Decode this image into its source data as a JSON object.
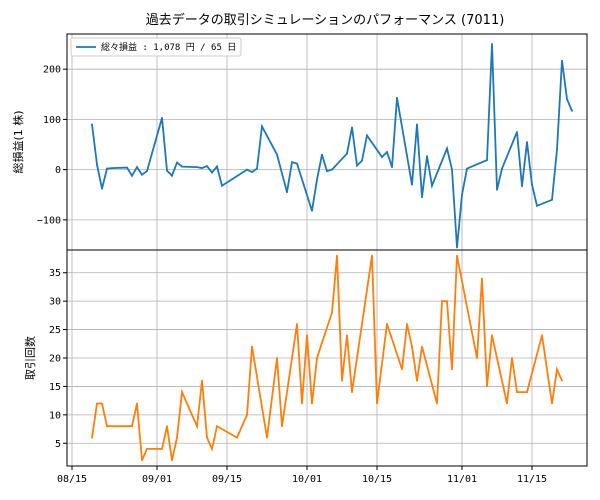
{
  "chart_data": {
    "title": "過去データの取引シミュレーションのパフォーマンス (7011)",
    "x_ticks": [
      "08/15",
      "09/01",
      "09/15",
      "10/01",
      "10/15",
      "11/01",
      "11/15"
    ],
    "x_tick_dates": [
      "2024-08-15",
      "2024-09-01",
      "2024-09-15",
      "2024-10-01",
      "2024-10-15",
      "2024-11-01",
      "2024-11-15"
    ],
    "xlim": [
      "2024-08-14",
      "2024-11-26"
    ],
    "grid": true,
    "subplots": [
      {
        "type": "line",
        "ylabel": "総損益(1 株)",
        "ylim": [
          -160,
          270
        ],
        "y_ticks": [
          -100,
          0,
          100,
          200
        ],
        "color": "#1f77b4",
        "legend": {
          "label": "総々損益 : 1,078 円 / 65 日",
          "placement": "top-left"
        },
        "points": [
          [
            "2024-08-19",
            90
          ],
          [
            "2024-08-20",
            10
          ],
          [
            "2024-08-21",
            -38
          ],
          [
            "2024-08-22",
            2
          ],
          [
            "2024-08-23",
            3
          ],
          [
            "2024-08-26",
            4
          ],
          [
            "2024-08-27",
            -12
          ],
          [
            "2024-08-28",
            5
          ],
          [
            "2024-08-29",
            -10
          ],
          [
            "2024-08-30",
            -3
          ],
          [
            "2024-09-02",
            103
          ],
          [
            "2024-09-03",
            -2
          ],
          [
            "2024-09-04",
            -12
          ],
          [
            "2024-09-05",
            14
          ],
          [
            "2024-09-06",
            6
          ],
          [
            "2024-09-09",
            5
          ],
          [
            "2024-09-10",
            3
          ],
          [
            "2024-09-11",
            7
          ],
          [
            "2024-09-12",
            -6
          ],
          [
            "2024-09-13",
            6
          ],
          [
            "2024-09-14",
            -32
          ],
          [
            "2024-09-19",
            0
          ],
          [
            "2024-09-20",
            -5
          ],
          [
            "2024-09-21",
            2
          ],
          [
            "2024-09-22",
            86
          ],
          [
            "2024-09-25",
            30
          ],
          [
            "2024-09-27",
            -45
          ],
          [
            "2024-09-28",
            15
          ],
          [
            "2024-09-29",
            12
          ],
          [
            "2024-10-02",
            -82
          ],
          [
            "2024-10-03",
            -20
          ],
          [
            "2024-10-04",
            30
          ],
          [
            "2024-10-05",
            -3
          ],
          [
            "2024-10-06",
            0
          ],
          [
            "2024-10-09",
            32
          ],
          [
            "2024-10-10",
            84
          ],
          [
            "2024-10-11",
            8
          ],
          [
            "2024-10-12",
            18
          ],
          [
            "2024-10-13",
            68
          ],
          [
            "2024-10-16",
            25
          ],
          [
            "2024-10-17",
            35
          ],
          [
            "2024-10-18",
            5
          ],
          [
            "2024-10-19",
            143
          ],
          [
            "2024-10-22",
            -30
          ],
          [
            "2024-10-23",
            90
          ],
          [
            "2024-10-24",
            -55
          ],
          [
            "2024-10-25",
            27
          ],
          [
            "2024-10-26",
            -32
          ],
          [
            "2024-10-29",
            42
          ],
          [
            "2024-10-30",
            0
          ],
          [
            "2024-10-31",
            -155
          ],
          [
            "2024-11-01",
            -50
          ],
          [
            "2024-11-02",
            2
          ],
          [
            "2024-11-06",
            19
          ],
          [
            "2024-11-07",
            250
          ],
          [
            "2024-11-08",
            -40
          ],
          [
            "2024-11-09",
            2
          ],
          [
            "2024-11-12",
            75
          ],
          [
            "2024-11-13",
            -33
          ],
          [
            "2024-11-14",
            55
          ],
          [
            "2024-11-15",
            -30
          ],
          [
            "2024-11-16",
            -72
          ],
          [
            "2024-11-19",
            -60
          ],
          [
            "2024-11-20",
            40
          ],
          [
            "2024-11-21",
            217
          ],
          [
            "2024-11-22",
            140
          ],
          [
            "2024-11-23",
            117
          ]
        ]
      },
      {
        "type": "line",
        "ylabel": "取引回数",
        "ylim": [
          1,
          39
        ],
        "y_ticks": [
          5,
          10,
          15,
          20,
          25,
          30,
          35
        ],
        "color": "#ff7f0e",
        "points": [
          [
            "2024-08-19",
            6
          ],
          [
            "2024-08-20",
            12
          ],
          [
            "2024-08-21",
            12
          ],
          [
            "2024-08-22",
            8
          ],
          [
            "2024-08-26",
            8
          ],
          [
            "2024-08-27",
            8
          ],
          [
            "2024-08-28",
            12
          ],
          [
            "2024-08-29",
            2
          ],
          [
            "2024-08-30",
            4
          ],
          [
            "2024-09-02",
            4
          ],
          [
            "2024-09-03",
            8
          ],
          [
            "2024-09-04",
            2
          ],
          [
            "2024-09-05",
            6
          ],
          [
            "2024-09-06",
            14
          ],
          [
            "2024-09-09",
            8
          ],
          [
            "2024-09-10",
            16
          ],
          [
            "2024-09-11",
            6
          ],
          [
            "2024-09-12",
            4
          ],
          [
            "2024-09-13",
            8
          ],
          [
            "2024-09-17",
            6
          ],
          [
            "2024-09-19",
            10
          ],
          [
            "2024-09-20",
            22
          ],
          [
            "2024-09-23",
            6
          ],
          [
            "2024-09-25",
            20
          ],
          [
            "2024-09-26",
            8
          ],
          [
            "2024-09-29",
            26
          ],
          [
            "2024-09-30",
            12
          ],
          [
            "2024-10-01",
            24
          ],
          [
            "2024-10-02",
            12
          ],
          [
            "2024-10-03",
            20
          ],
          [
            "2024-10-06",
            28
          ],
          [
            "2024-10-07",
            38
          ],
          [
            "2024-10-08",
            16
          ],
          [
            "2024-10-09",
            24
          ],
          [
            "2024-10-10",
            14
          ],
          [
            "2024-10-13",
            32
          ],
          [
            "2024-10-14",
            38
          ],
          [
            "2024-10-15",
            12
          ],
          [
            "2024-10-17",
            26
          ],
          [
            "2024-10-20",
            18
          ],
          [
            "2024-10-21",
            26
          ],
          [
            "2024-10-22",
            22
          ],
          [
            "2024-10-23",
            16
          ],
          [
            "2024-10-24",
            22
          ],
          [
            "2024-10-27",
            12
          ],
          [
            "2024-10-28",
            30
          ],
          [
            "2024-10-29",
            30
          ],
          [
            "2024-10-30",
            18
          ],
          [
            "2024-10-31",
            38
          ],
          [
            "2024-11-04",
            20
          ],
          [
            "2024-11-05",
            34
          ],
          [
            "2024-11-06",
            15
          ],
          [
            "2024-11-07",
            24
          ],
          [
            "2024-11-10",
            12
          ],
          [
            "2024-11-11",
            20
          ],
          [
            "2024-11-12",
            14
          ],
          [
            "2024-11-14",
            14
          ],
          [
            "2024-11-17",
            24
          ],
          [
            "2024-11-19",
            12
          ],
          [
            "2024-11-20",
            18
          ],
          [
            "2024-11-21",
            16
          ]
        ]
      }
    ]
  }
}
